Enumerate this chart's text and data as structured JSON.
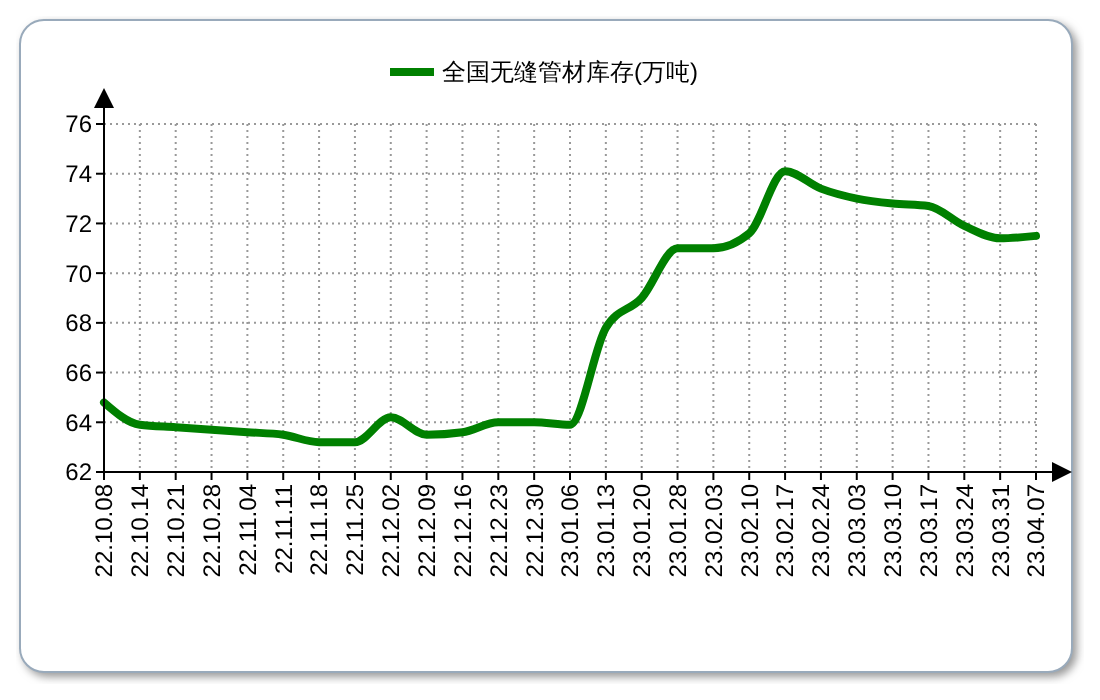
{
  "chart_data": {
    "type": "line",
    "categories": [
      "22.10.08",
      "22.10.14",
      "22.10.21",
      "22.10.28",
      "22.11.04",
      "22.11.11",
      "22.11.18",
      "22.11.25",
      "22.12.02",
      "22.12.09",
      "22.12.16",
      "22.12.23",
      "22.12.30",
      "23.01.06",
      "23.01.13",
      "23.01.20",
      "23.01.28",
      "23.02.03",
      "23.02.10",
      "23.02.17",
      "23.02.24",
      "23.03.03",
      "23.03.10",
      "23.03.17",
      "23.03.24",
      "23.03.31",
      "23.04.07"
    ],
    "series": [
      {
        "name": "全国无缝管材库存(万吨)",
        "color": "#008000",
        "values": [
          64.8,
          63.9,
          63.8,
          63.7,
          63.6,
          63.5,
          63.2,
          63.2,
          64.2,
          63.5,
          63.6,
          64.0,
          64.0,
          63.9,
          67.8,
          69.0,
          71.0,
          71.0,
          71.6,
          74.1,
          73.4,
          73.0,
          72.8,
          72.7,
          71.9,
          71.4,
          71.5
        ]
      }
    ],
    "ylim": [
      62,
      76
    ],
    "yticks": [
      62,
      64,
      66,
      68,
      70,
      72,
      74,
      76
    ],
    "grid": true,
    "legend": "top",
    "marker": "none",
    "line_style": "solid"
  }
}
